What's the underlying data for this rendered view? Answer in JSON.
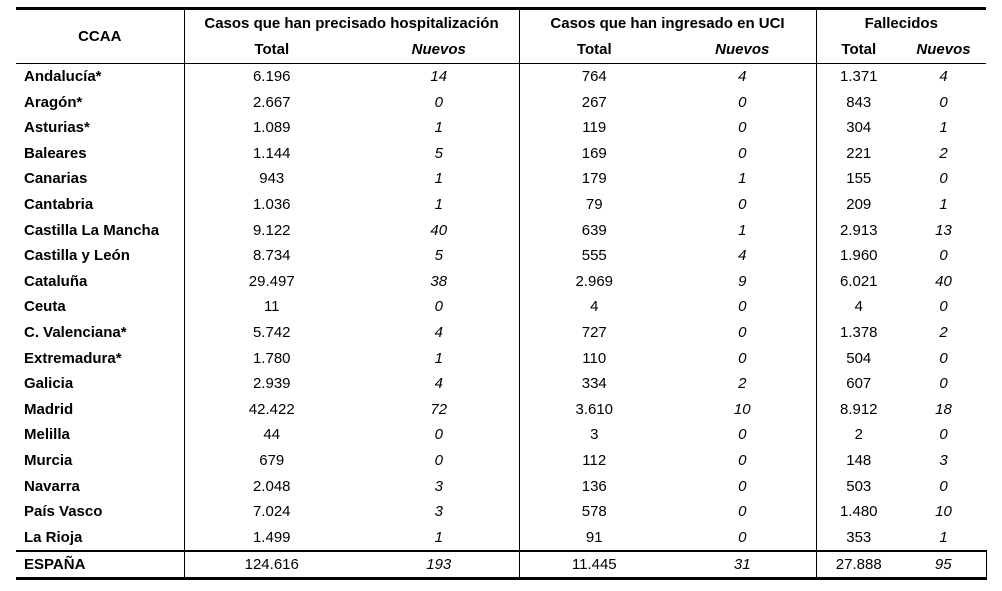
{
  "headers": {
    "ccaa": "CCAA",
    "group_hosp": "Casos que han precisado hospitalización",
    "group_uci": "Casos que han ingresado en UCI",
    "group_fallecidos": "Fallecidos",
    "total": "Total",
    "nuevos": "Nuevos"
  },
  "rows": [
    {
      "name": "Andalucía*",
      "hosp_total": "6.196",
      "hosp_nuevos": "14",
      "uci_total": "764",
      "uci_nuevos": "4",
      "fall_total": "1.371",
      "fall_nuevos": "4"
    },
    {
      "name": "Aragón*",
      "hosp_total": "2.667",
      "hosp_nuevos": "0",
      "uci_total": "267",
      "uci_nuevos": "0",
      "fall_total": "843",
      "fall_nuevos": "0"
    },
    {
      "name": "Asturias*",
      "hosp_total": "1.089",
      "hosp_nuevos": "1",
      "uci_total": "119",
      "uci_nuevos": "0",
      "fall_total": "304",
      "fall_nuevos": "1"
    },
    {
      "name": "Baleares",
      "hosp_total": "1.144",
      "hosp_nuevos": "5",
      "uci_total": "169",
      "uci_nuevos": "0",
      "fall_total": "221",
      "fall_nuevos": "2"
    },
    {
      "name": "Canarias",
      "hosp_total": "943",
      "hosp_nuevos": "1",
      "uci_total": "179",
      "uci_nuevos": "1",
      "fall_total": "155",
      "fall_nuevos": "0"
    },
    {
      "name": "Cantabria",
      "hosp_total": "1.036",
      "hosp_nuevos": "1",
      "uci_total": "79",
      "uci_nuevos": "0",
      "fall_total": "209",
      "fall_nuevos": "1"
    },
    {
      "name": "Castilla La Mancha",
      "hosp_total": "9.122",
      "hosp_nuevos": "40",
      "uci_total": "639",
      "uci_nuevos": "1",
      "fall_total": "2.913",
      "fall_nuevos": "13"
    },
    {
      "name": "Castilla y León",
      "hosp_total": "8.734",
      "hosp_nuevos": "5",
      "uci_total": "555",
      "uci_nuevos": "4",
      "fall_total": "1.960",
      "fall_nuevos": "0"
    },
    {
      "name": "Cataluña",
      "hosp_total": "29.497",
      "hosp_nuevos": "38",
      "uci_total": "2.969",
      "uci_nuevos": "9",
      "fall_total": "6.021",
      "fall_nuevos": "40"
    },
    {
      "name": "Ceuta",
      "hosp_total": "11",
      "hosp_nuevos": "0",
      "uci_total": "4",
      "uci_nuevos": "0",
      "fall_total": "4",
      "fall_nuevos": "0"
    },
    {
      "name": "C. Valenciana*",
      "hosp_total": "5.742",
      "hosp_nuevos": "4",
      "uci_total": "727",
      "uci_nuevos": "0",
      "fall_total": "1.378",
      "fall_nuevos": "2"
    },
    {
      "name": "Extremadura*",
      "hosp_total": "1.780",
      "hosp_nuevos": "1",
      "uci_total": "110",
      "uci_nuevos": "0",
      "fall_total": "504",
      "fall_nuevos": "0"
    },
    {
      "name": "Galicia",
      "hosp_total": "2.939",
      "hosp_nuevos": "4",
      "uci_total": "334",
      "uci_nuevos": "2",
      "fall_total": "607",
      "fall_nuevos": "0"
    },
    {
      "name": "Madrid",
      "hosp_total": "42.422",
      "hosp_nuevos": "72",
      "uci_total": "3.610",
      "uci_nuevos": "10",
      "fall_total": "8.912",
      "fall_nuevos": "18"
    },
    {
      "name": "Melilla",
      "hosp_total": "44",
      "hosp_nuevos": "0",
      "uci_total": "3",
      "uci_nuevos": "0",
      "fall_total": "2",
      "fall_nuevos": "0"
    },
    {
      "name": "Murcia",
      "hosp_total": "679",
      "hosp_nuevos": "0",
      "uci_total": "112",
      "uci_nuevos": "0",
      "fall_total": "148",
      "fall_nuevos": "3"
    },
    {
      "name": "Navarra",
      "hosp_total": "2.048",
      "hosp_nuevos": "3",
      "uci_total": "136",
      "uci_nuevos": "0",
      "fall_total": "503",
      "fall_nuevos": "0"
    },
    {
      "name": "País Vasco",
      "hosp_total": "7.024",
      "hosp_nuevos": "3",
      "uci_total": "578",
      "uci_nuevos": "0",
      "fall_total": "1.480",
      "fall_nuevos": "10"
    },
    {
      "name": "La Rioja",
      "hosp_total": "1.499",
      "hosp_nuevos": "1",
      "uci_total": "91",
      "uci_nuevos": "0",
      "fall_total": "353",
      "fall_nuevos": "1"
    }
  ],
  "total_row": {
    "name": "ESPAÑA",
    "hosp_total": "124.616",
    "hosp_nuevos": "193",
    "uci_total": "11.445",
    "uci_nuevos": "31",
    "fall_total": "27.888",
    "fall_nuevos": "95"
  }
}
